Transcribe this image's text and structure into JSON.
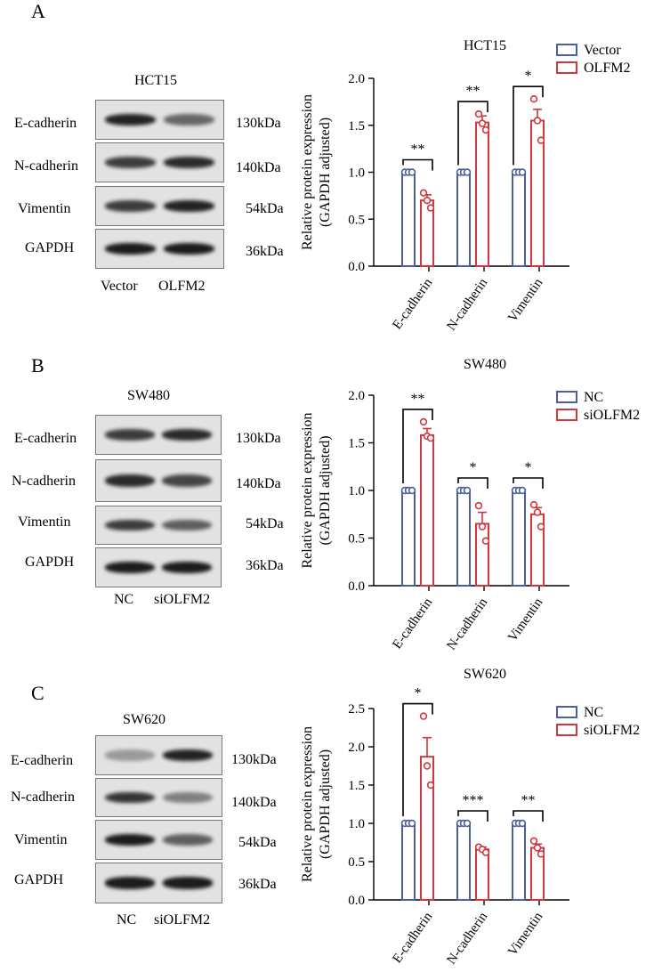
{
  "colors": {
    "control": "#4b5e9e",
    "treated": "#d2363f"
  },
  "panels": [
    {
      "label": "A",
      "blot_title": "HCT15",
      "rows": [
        {
          "name": "E-cadherin",
          "kda": "130kDa"
        },
        {
          "name": "N-cadherin",
          "kda": "140kDa"
        },
        {
          "name": "Vimentin",
          "kda": "54kDa"
        },
        {
          "name": "GAPDH",
          "kda": "36kDa"
        }
      ],
      "lanes": [
        "Vector",
        "OLFM2"
      ],
      "bands": [
        [
          0.95,
          0.55
        ],
        [
          0.8,
          0.9
        ],
        [
          0.8,
          0.95
        ],
        [
          1.0,
          1.0
        ]
      ],
      "chart_data": {
        "type": "bar",
        "title": "HCT15",
        "ylabel": "Relative protein expression (GAPDH adjusted)",
        "ylabel_lines": [
          "Relative protein expression",
          "(GAPDH adjusted)"
        ],
        "ylim": [
          0,
          2.0
        ],
        "yticks": [
          "0.0",
          "0.5",
          "1.0",
          "1.5",
          "2.0"
        ],
        "categories": [
          "E-cadherin",
          "N-cadherin",
          "Vimentin"
        ],
        "series": [
          {
            "name": "Vector",
            "values": [
              1.0,
              1.0,
              1.0
            ],
            "err": [
              0,
              0,
              0
            ],
            "points": [
              [
                1.0,
                1.0,
                1.0
              ],
              [
                1.0,
                1.0,
                1.0
              ],
              [
                1.0,
                1.0,
                1.0
              ]
            ]
          },
          {
            "name": "OLFM2",
            "values": [
              0.7,
              1.53,
              1.55
            ],
            "err": [
              0.06,
              0.07,
              0.12
            ],
            "points": [
              [
                0.78,
                0.7,
                0.62
              ],
              [
                1.62,
                1.52,
                1.45
              ],
              [
                1.78,
                1.55,
                1.34
              ]
            ]
          }
        ],
        "significance": [
          "**",
          "**",
          "*"
        ],
        "legend": "top-right"
      }
    },
    {
      "label": "B",
      "blot_title": "SW480",
      "rows": [
        {
          "name": "E-cadherin",
          "kda": "130kDa"
        },
        {
          "name": "N-cadherin",
          "kda": "140kDa"
        },
        {
          "name": "Vimentin",
          "kda": "54kDa"
        },
        {
          "name": "GAPDH",
          "kda": "36kDa"
        }
      ],
      "lanes": [
        "NC",
        "siOLFM2"
      ],
      "bands": [
        [
          0.8,
          0.9
        ],
        [
          0.9,
          0.75
        ],
        [
          0.8,
          0.6
        ],
        [
          1.0,
          1.0
        ]
      ],
      "chart_data": {
        "type": "bar",
        "title": "SW480",
        "ylabel": "Relative protein expression (GAPDH adjusted)",
        "ylabel_lines": [
          "Relative protein expression",
          "(GAPDH adjusted)"
        ],
        "ylim": [
          0,
          2.0
        ],
        "yticks": [
          "0.0",
          "0.5",
          "1.0",
          "1.5",
          "2.0"
        ],
        "categories": [
          "E-cadherin",
          "N-cadherin",
          "Vimentin"
        ],
        "series": [
          {
            "name": "NC",
            "values": [
              1.0,
              1.0,
              1.0
            ],
            "err": [
              0,
              0,
              0
            ],
            "points": [
              [
                1.0,
                1.0,
                1.0
              ],
              [
                1.0,
                1.0,
                1.0
              ],
              [
                1.0,
                1.0,
                1.0
              ]
            ]
          },
          {
            "name": "siOLFM2",
            "values": [
              1.58,
              0.65,
              0.75
            ],
            "err": [
              0.07,
              0.12,
              0.07
            ],
            "points": [
              [
                1.72,
                1.57,
                1.55
              ],
              [
                0.84,
                0.62,
                0.47
              ],
              [
                0.85,
                0.77,
                0.62
              ]
            ]
          }
        ],
        "significance": [
          "**",
          "*",
          "*"
        ],
        "legend": "top-right"
      }
    },
    {
      "label": "C",
      "blot_title": "SW620",
      "rows": [
        {
          "name": "E-cadherin",
          "kda": "130kDa"
        },
        {
          "name": "N-cadherin",
          "kda": "140kDa"
        },
        {
          "name": "Vimentin",
          "kda": "54kDa"
        },
        {
          "name": "GAPDH",
          "kda": "36kDa"
        }
      ],
      "lanes": [
        "NC",
        "siOLFM2"
      ],
      "bands": [
        [
          0.25,
          0.95
        ],
        [
          0.85,
          0.4
        ],
        [
          1.0,
          0.6
        ],
        [
          1.0,
          1.0
        ]
      ],
      "chart_data": {
        "type": "bar",
        "title": "SW620",
        "ylabel": "Relative protein expression (GAPDH adjusted)",
        "ylabel_lines": [
          "Relative protein expression",
          "(GAPDH adjusted)"
        ],
        "ylim": [
          0,
          2.5
        ],
        "yticks": [
          "0.0",
          "0.5",
          "1.0",
          "1.5",
          "2.0",
          "2.5"
        ],
        "categories": [
          "E-cadherin",
          "N-cadherin",
          "Vimentin"
        ],
        "series": [
          {
            "name": "NC",
            "values": [
              1.0,
              1.0,
              1.0
            ],
            "err": [
              0,
              0,
              0
            ],
            "points": [
              [
                1.0,
                1.0,
                1.0
              ],
              [
                1.0,
                1.0,
                1.0
              ],
              [
                1.0,
                1.0,
                1.0
              ]
            ]
          },
          {
            "name": "siOLFM2",
            "values": [
              1.87,
              0.66,
              0.68
            ],
            "err": [
              0.25,
              0.03,
              0.05
            ],
            "points": [
              [
                2.4,
                1.75,
                1.5
              ],
              [
                0.69,
                0.66,
                0.62
              ],
              [
                0.77,
                0.68,
                0.6
              ]
            ]
          }
        ],
        "significance": [
          "*",
          "***",
          "**"
        ],
        "legend": "top-right"
      }
    }
  ]
}
